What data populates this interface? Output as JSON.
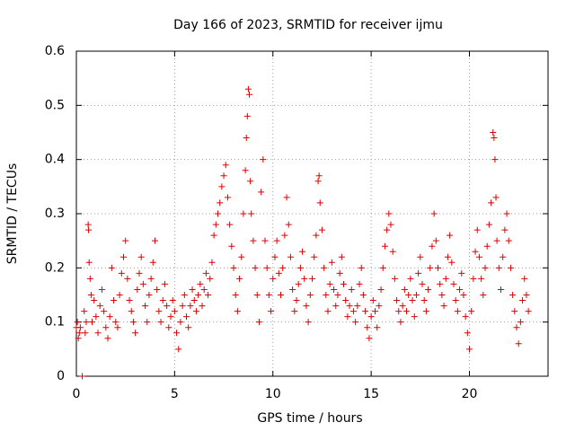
{
  "chart_data": {
    "type": "scatter",
    "title": "Day 166 of 2023, SRMTID for receiver ijmu",
    "xlabel": "GPS time / hours",
    "ylabel": "SRMTID / TECUs",
    "xlim": [
      0,
      24
    ],
    "ylim": [
      0,
      0.6
    ],
    "x_ticks": [
      0,
      5,
      10,
      15,
      20
    ],
    "x_tick_labels": [
      "0",
      "5",
      "10",
      "15",
      "20"
    ],
    "y_ticks": [
      0,
      0.1,
      0.2,
      0.3,
      0.4,
      0.5,
      0.6
    ],
    "y_tick_labels": [
      "0",
      "0.1",
      "0.2",
      "0.3",
      "0.4",
      "0.5",
      "0.6"
    ],
    "grid": true,
    "marker": "+",
    "color": "#dd0000",
    "series": [
      {
        "name": "SRMTID",
        "points": [
          [
            0.0,
            0.09
          ],
          [
            0.05,
            0.1
          ],
          [
            0.1,
            0.07
          ],
          [
            0.15,
            0.08
          ],
          [
            0.2,
            0.09
          ],
          [
            0.3,
            0.0
          ],
          [
            0.4,
            0.12
          ],
          [
            0.45,
            0.08
          ],
          [
            0.5,
            0.1
          ],
          [
            0.6,
            0.28
          ],
          [
            0.62,
            0.27
          ],
          [
            0.65,
            0.21
          ],
          [
            0.7,
            0.18
          ],
          [
            0.75,
            0.15
          ],
          [
            0.8,
            0.1
          ],
          [
            0.9,
            0.14
          ],
          [
            1.0,
            0.11
          ],
          [
            1.1,
            0.08
          ],
          [
            1.2,
            0.13
          ],
          [
            1.3,
            0.16
          ],
          [
            1.4,
            0.12
          ],
          [
            1.5,
            0.09
          ],
          [
            1.6,
            0.07
          ],
          [
            1.7,
            0.11
          ],
          [
            1.8,
            0.2
          ],
          [
            1.9,
            0.14
          ],
          [
            2.0,
            0.1
          ],
          [
            2.1,
            0.09
          ],
          [
            2.2,
            0.15
          ],
          [
            2.3,
            0.19
          ],
          [
            2.4,
            0.22
          ],
          [
            2.5,
            0.25
          ],
          [
            2.6,
            0.18
          ],
          [
            2.7,
            0.14
          ],
          [
            2.8,
            0.12
          ],
          [
            2.9,
            0.1
          ],
          [
            3.0,
            0.08
          ],
          [
            3.1,
            0.16
          ],
          [
            3.2,
            0.19
          ],
          [
            3.3,
            0.22
          ],
          [
            3.4,
            0.17
          ],
          [
            3.5,
            0.13
          ],
          [
            3.6,
            0.1
          ],
          [
            3.7,
            0.15
          ],
          [
            3.8,
            0.18
          ],
          [
            3.9,
            0.21
          ],
          [
            4.0,
            0.25
          ],
          [
            4.1,
            0.16
          ],
          [
            4.2,
            0.12
          ],
          [
            4.3,
            0.1
          ],
          [
            4.4,
            0.14
          ],
          [
            4.5,
            0.17
          ],
          [
            4.6,
            0.13
          ],
          [
            4.7,
            0.09
          ],
          [
            4.8,
            0.11
          ],
          [
            4.9,
            0.14
          ],
          [
            5.0,
            0.12
          ],
          [
            5.1,
            0.08
          ],
          [
            5.2,
            0.05
          ],
          [
            5.3,
            0.1
          ],
          [
            5.4,
            0.13
          ],
          [
            5.5,
            0.15
          ],
          [
            5.6,
            0.11
          ],
          [
            5.7,
            0.09
          ],
          [
            5.8,
            0.13
          ],
          [
            5.9,
            0.16
          ],
          [
            6.0,
            0.14
          ],
          [
            6.1,
            0.12
          ],
          [
            6.2,
            0.15
          ],
          [
            6.3,
            0.17
          ],
          [
            6.4,
            0.13
          ],
          [
            6.5,
            0.16
          ],
          [
            6.6,
            0.19
          ],
          [
            6.7,
            0.15
          ],
          [
            6.8,
            0.18
          ],
          [
            6.9,
            0.21
          ],
          [
            7.0,
            0.26
          ],
          [
            7.1,
            0.28
          ],
          [
            7.2,
            0.3
          ],
          [
            7.3,
            0.32
          ],
          [
            7.4,
            0.35
          ],
          [
            7.5,
            0.37
          ],
          [
            7.6,
            0.39
          ],
          [
            7.7,
            0.33
          ],
          [
            7.8,
            0.28
          ],
          [
            7.9,
            0.24
          ],
          [
            8.0,
            0.2
          ],
          [
            8.1,
            0.15
          ],
          [
            8.2,
            0.12
          ],
          [
            8.3,
            0.18
          ],
          [
            8.4,
            0.22
          ],
          [
            8.5,
            0.3
          ],
          [
            8.6,
            0.38
          ],
          [
            8.65,
            0.44
          ],
          [
            8.7,
            0.48
          ],
          [
            8.75,
            0.53
          ],
          [
            8.8,
            0.52
          ],
          [
            8.85,
            0.36
          ],
          [
            8.9,
            0.3
          ],
          [
            9.0,
            0.25
          ],
          [
            9.1,
            0.2
          ],
          [
            9.2,
            0.15
          ],
          [
            9.3,
            0.1
          ],
          [
            9.4,
            0.34
          ],
          [
            9.5,
            0.4
          ],
          [
            9.6,
            0.25
          ],
          [
            9.7,
            0.2
          ],
          [
            9.8,
            0.15
          ],
          [
            9.9,
            0.12
          ],
          [
            10.0,
            0.18
          ],
          [
            10.1,
            0.22
          ],
          [
            10.2,
            0.25
          ],
          [
            10.3,
            0.19
          ],
          [
            10.4,
            0.15
          ],
          [
            10.5,
            0.2
          ],
          [
            10.6,
            0.26
          ],
          [
            10.7,
            0.33
          ],
          [
            10.8,
            0.28
          ],
          [
            10.9,
            0.22
          ],
          [
            11.0,
            0.16
          ],
          [
            11.1,
            0.12
          ],
          [
            11.2,
            0.14
          ],
          [
            11.3,
            0.17
          ],
          [
            11.4,
            0.2
          ],
          [
            11.5,
            0.23
          ],
          [
            11.6,
            0.18
          ],
          [
            11.7,
            0.13
          ],
          [
            11.8,
            0.1
          ],
          [
            11.9,
            0.15
          ],
          [
            12.0,
            0.18
          ],
          [
            12.1,
            0.22
          ],
          [
            12.2,
            0.26
          ],
          [
            12.3,
            0.36
          ],
          [
            12.35,
            0.37
          ],
          [
            12.4,
            0.32
          ],
          [
            12.5,
            0.27
          ],
          [
            12.6,
            0.2
          ],
          [
            12.7,
            0.15
          ],
          [
            12.8,
            0.12
          ],
          [
            12.9,
            0.17
          ],
          [
            13.0,
            0.21
          ],
          [
            13.1,
            0.16
          ],
          [
            13.2,
            0.13
          ],
          [
            13.3,
            0.15
          ],
          [
            13.4,
            0.19
          ],
          [
            13.5,
            0.22
          ],
          [
            13.6,
            0.17
          ],
          [
            13.7,
            0.14
          ],
          [
            13.8,
            0.11
          ],
          [
            13.9,
            0.13
          ],
          [
            14.0,
            0.16
          ],
          [
            14.1,
            0.12
          ],
          [
            14.2,
            0.1
          ],
          [
            14.3,
            0.13
          ],
          [
            14.4,
            0.17
          ],
          [
            14.5,
            0.2
          ],
          [
            14.6,
            0.15
          ],
          [
            14.7,
            0.12
          ],
          [
            14.8,
            0.09
          ],
          [
            14.9,
            0.07
          ],
          [
            15.0,
            0.11
          ],
          [
            15.1,
            0.14
          ],
          [
            15.2,
            0.12
          ],
          [
            15.3,
            0.09
          ],
          [
            15.4,
            0.13
          ],
          [
            15.5,
            0.16
          ],
          [
            15.6,
            0.2
          ],
          [
            15.7,
            0.24
          ],
          [
            15.8,
            0.27
          ],
          [
            15.9,
            0.3
          ],
          [
            16.0,
            0.28
          ],
          [
            16.1,
            0.23
          ],
          [
            16.2,
            0.18
          ],
          [
            16.3,
            0.14
          ],
          [
            16.4,
            0.12
          ],
          [
            16.5,
            0.1
          ],
          [
            16.6,
            0.13
          ],
          [
            16.7,
            0.16
          ],
          [
            16.8,
            0.12
          ],
          [
            16.9,
            0.15
          ],
          [
            17.0,
            0.18
          ],
          [
            17.1,
            0.14
          ],
          [
            17.2,
            0.11
          ],
          [
            17.3,
            0.15
          ],
          [
            17.4,
            0.19
          ],
          [
            17.5,
            0.22
          ],
          [
            17.6,
            0.17
          ],
          [
            17.7,
            0.14
          ],
          [
            17.8,
            0.12
          ],
          [
            17.9,
            0.16
          ],
          [
            18.0,
            0.2
          ],
          [
            18.1,
            0.24
          ],
          [
            18.2,
            0.3
          ],
          [
            18.3,
            0.25
          ],
          [
            18.4,
            0.2
          ],
          [
            18.5,
            0.17
          ],
          [
            18.6,
            0.15
          ],
          [
            18.7,
            0.13
          ],
          [
            18.8,
            0.18
          ],
          [
            18.9,
            0.22
          ],
          [
            19.0,
            0.26
          ],
          [
            19.1,
            0.21
          ],
          [
            19.2,
            0.17
          ],
          [
            19.3,
            0.14
          ],
          [
            19.4,
            0.12
          ],
          [
            19.5,
            0.16
          ],
          [
            19.6,
            0.19
          ],
          [
            19.7,
            0.15
          ],
          [
            19.8,
            0.11
          ],
          [
            19.9,
            0.08
          ],
          [
            20.0,
            0.05
          ],
          [
            20.1,
            0.12
          ],
          [
            20.2,
            0.18
          ],
          [
            20.3,
            0.23
          ],
          [
            20.4,
            0.27
          ],
          [
            20.5,
            0.22
          ],
          [
            20.6,
            0.18
          ],
          [
            20.7,
            0.15
          ],
          [
            20.8,
            0.2
          ],
          [
            20.9,
            0.24
          ],
          [
            21.0,
            0.28
          ],
          [
            21.1,
            0.32
          ],
          [
            21.2,
            0.45
          ],
          [
            21.25,
            0.44
          ],
          [
            21.3,
            0.4
          ],
          [
            21.35,
            0.33
          ],
          [
            21.4,
            0.25
          ],
          [
            21.5,
            0.2
          ],
          [
            21.6,
            0.16
          ],
          [
            21.7,
            0.22
          ],
          [
            21.8,
            0.27
          ],
          [
            21.9,
            0.3
          ],
          [
            22.0,
            0.25
          ],
          [
            22.1,
            0.2
          ],
          [
            22.2,
            0.15
          ],
          [
            22.3,
            0.12
          ],
          [
            22.4,
            0.09
          ],
          [
            22.5,
            0.06
          ],
          [
            22.6,
            0.1
          ],
          [
            22.7,
            0.14
          ],
          [
            22.8,
            0.18
          ],
          [
            22.9,
            0.15
          ],
          [
            23.0,
            0.12
          ]
        ]
      }
    ]
  }
}
